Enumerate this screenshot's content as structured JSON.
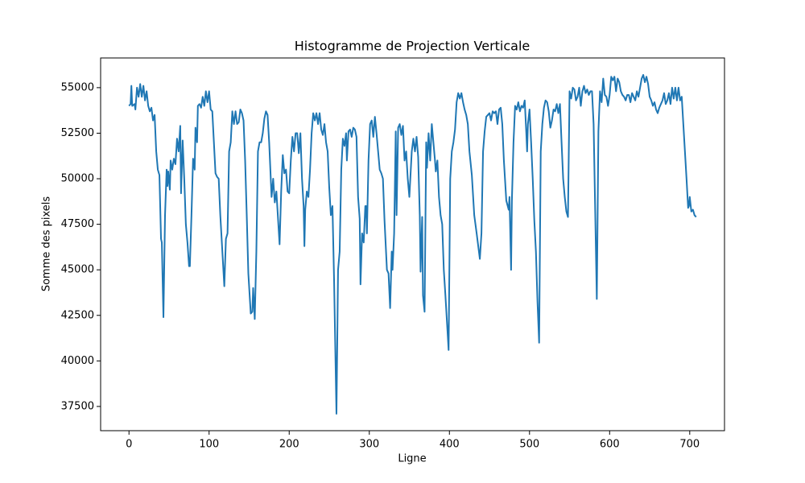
{
  "chart_data": {
    "type": "line",
    "title": "Histogramme de Projection Verticale",
    "x_label": "Ligne",
    "y_label": "Somme des pixels",
    "color": "#1f77b4",
    "xlim": [
      -35.4,
      743.4
    ],
    "ylim": [
      36170,
      56630
    ],
    "xticks": [
      0,
      100,
      200,
      300,
      400,
      500,
      600,
      700
    ],
    "yticks": [
      37500,
      40000,
      42500,
      45000,
      47500,
      50000,
      52500,
      55000
    ],
    "grid": false,
    "x": [
      0,
      2,
      3,
      4,
      7,
      8,
      10,
      12,
      14,
      16,
      18,
      20,
      22,
      24,
      26,
      28,
      30,
      32,
      34,
      36,
      38,
      40,
      41,
      43,
      45,
      47,
      48,
      49,
      51,
      52,
      54,
      56,
      58,
      60,
      62,
      64,
      65,
      67,
      69,
      71,
      73,
      75,
      76,
      78,
      80,
      82,
      83,
      85,
      86,
      88,
      90,
      92,
      94,
      96,
      98,
      100,
      102,
      104,
      106,
      108,
      110,
      112,
      114,
      119,
      121,
      123,
      125,
      127,
      129,
      131,
      133,
      135,
      137,
      139,
      141,
      143,
      145,
      147,
      149,
      152,
      154,
      155,
      157,
      159,
      161,
      163,
      165,
      167,
      169,
      171,
      173,
      175,
      178,
      180,
      182,
      184,
      188,
      190,
      192,
      194,
      196,
      198,
      200,
      202,
      204,
      206,
      208,
      210,
      212,
      214,
      216,
      218,
      219,
      220,
      222,
      224,
      226,
      228,
      230,
      232,
      234,
      236,
      238,
      240,
      242,
      244,
      246,
      248,
      250,
      252,
      254,
      256,
      259,
      261,
      263,
      265,
      267,
      269,
      271,
      272,
      274,
      276,
      278,
      280,
      282,
      284,
      286,
      288,
      289,
      291,
      293,
      295,
      296,
      297,
      299,
      301,
      303,
      305,
      307,
      309,
      311,
      313,
      315,
      317,
      319,
      322,
      324,
      326,
      328,
      329,
      331,
      333,
      334,
      336,
      338,
      340,
      342,
      344,
      346,
      348,
      350,
      353,
      355,
      357,
      359,
      361,
      363,
      364,
      366,
      367,
      369,
      371,
      372,
      374,
      376,
      378,
      380,
      382,
      383,
      385,
      387,
      389,
      391,
      393,
      395,
      399,
      401,
      403,
      405,
      407,
      409,
      411,
      413,
      415,
      417,
      419,
      421,
      423,
      425,
      428,
      431,
      434,
      438,
      440,
      442,
      444,
      446,
      448,
      450,
      452,
      454,
      456,
      458,
      460,
      462,
      464,
      466,
      468,
      471,
      474,
      475,
      477,
      478,
      480,
      482,
      484,
      486,
      488,
      490,
      492,
      494,
      496,
      497,
      498,
      500,
      502,
      504,
      506,
      508,
      510,
      512,
      514,
      516,
      518,
      520,
      522,
      524,
      526,
      528,
      530,
      532,
      534,
      536,
      538,
      540,
      542,
      544,
      546,
      548,
      550,
      552,
      554,
      556,
      558,
      560,
      562,
      564,
      566,
      568,
      570,
      572,
      574,
      576,
      578,
      580,
      582,
      584,
      586,
      588,
      590,
      592,
      594,
      596,
      598,
      600,
      602,
      604,
      606,
      608,
      610,
      612,
      614,
      616,
      618,
      620,
      622,
      624,
      626,
      628,
      630,
      632,
      634,
      636,
      638,
      640,
      642,
      644,
      646,
      648,
      650,
      652,
      654,
      656,
      658,
      660,
      662,
      664,
      666,
      668,
      670,
      672,
      674,
      676,
      678,
      680,
      682,
      684,
      686,
      688,
      690,
      692,
      694,
      696,
      698,
      699,
      700,
      702,
      704,
      706,
      708
    ],
    "values": [
      54000,
      54100,
      55100,
      54000,
      54100,
      53800,
      55000,
      54500,
      55200,
      54500,
      55100,
      54300,
      54800,
      54000,
      53700,
      53900,
      53200,
      53500,
      51500,
      50500,
      50200,
      46700,
      46500,
      42400,
      48000,
      50500,
      49600,
      50400,
      49400,
      51000,
      50500,
      51100,
      50800,
      52200,
      51500,
      52900,
      49200,
      52100,
      50000,
      47500,
      46500,
      45200,
      45200,
      48000,
      51100,
      50500,
      52800,
      52000,
      54000,
      54100,
      53900,
      54500,
      54000,
      54800,
      54200,
      54800,
      53800,
      53700,
      52000,
      50300,
      50100,
      50000,
      48000,
      44100,
      46700,
      47000,
      51500,
      52000,
      53700,
      53000,
      53700,
      53000,
      53100,
      53800,
      53600,
      53200,
      51000,
      48000,
      44800,
      42600,
      42700,
      44000,
      42300,
      46000,
      51500,
      52000,
      52000,
      52500,
      53300,
      53700,
      53500,
      52000,
      49000,
      50000,
      48700,
      49300,
      46400,
      49300,
      51300,
      50300,
      50500,
      49300,
      49200,
      51000,
      52300,
      51500,
      52500,
      52500,
      51400,
      52500,
      50000,
      48500,
      46300,
      48300,
      49300,
      49000,
      50500,
      52500,
      53600,
      53200,
      53600,
      53000,
      53600,
      52700,
      52400,
      53000,
      52000,
      51500,
      49500,
      48000,
      48500,
      44500,
      37100,
      45000,
      46000,
      50500,
      52200,
      51800,
      52500,
      51000,
      52600,
      52700,
      52300,
      52800,
      52700,
      52300,
      49000,
      47800,
      44200,
      47000,
      46500,
      48500,
      48500,
      47000,
      51000,
      53000,
      53200,
      52300,
      53400,
      52500,
      51500,
      50500,
      50300,
      50000,
      47700,
      45000,
      44800,
      42900,
      46000,
      45000,
      47000,
      52600,
      48000,
      52800,
      53000,
      52400,
      52900,
      51000,
      51500,
      50000,
      49000,
      51500,
      52200,
      51500,
      52300,
      51200,
      48000,
      44900,
      47900,
      43600,
      42700,
      52000,
      50600,
      52500,
      51000,
      53000,
      52000,
      51000,
      50400,
      51000,
      49000,
      48000,
      47500,
      45000,
      43600,
      40600,
      50000,
      51500,
      52000,
      52700,
      54200,
      54700,
      54400,
      54700,
      54200,
      53800,
      53500,
      53000,
      51500,
      50200,
      48000,
      47000,
      45600,
      47000,
      51500,
      52600,
      53400,
      53500,
      53600,
      53200,
      53700,
      53600,
      53700,
      53000,
      53800,
      53900,
      53000,
      51000,
      48800,
      48300,
      49000,
      45000,
      48800,
      52000,
      54000,
      53800,
      54200,
      53700,
      54000,
      53900,
      54300,
      52500,
      51500,
      53000,
      53800,
      52000,
      50000,
      47700,
      46000,
      43200,
      41000,
      51500,
      53000,
      53900,
      54300,
      54200,
      53700,
      52800,
      53200,
      53800,
      53700,
      54100,
      53600,
      54100,
      52000,
      50000,
      49000,
      48200,
      47900,
      54800,
      54400,
      55000,
      54900,
      54300,
      54500,
      55000,
      54000,
      54800,
      55100,
      54700,
      54900,
      54600,
      54800,
      54800,
      53000,
      48200,
      43400,
      52600,
      54800,
      54200,
      55500,
      54600,
      54500,
      54000,
      54600,
      55600,
      55400,
      55600,
      54800,
      55500,
      55300,
      54800,
      54600,
      54500,
      54300,
      54600,
      54600,
      54200,
      54700,
      54500,
      54300,
      54800,
      54500,
      55000,
      55500,
      55700,
      55300,
      55600,
      55200,
      54500,
      54300,
      54000,
      54200,
      53800,
      53600,
      53900,
      54100,
      54300,
      54700,
      54100,
      54300,
      54700,
      54100,
      55000,
      54400,
      55000,
      54300,
      55000,
      54300,
      54500,
      53000,
      51500,
      50000,
      48400,
      48500,
      49000,
      48200,
      48300,
      48000,
      47900
    ]
  }
}
